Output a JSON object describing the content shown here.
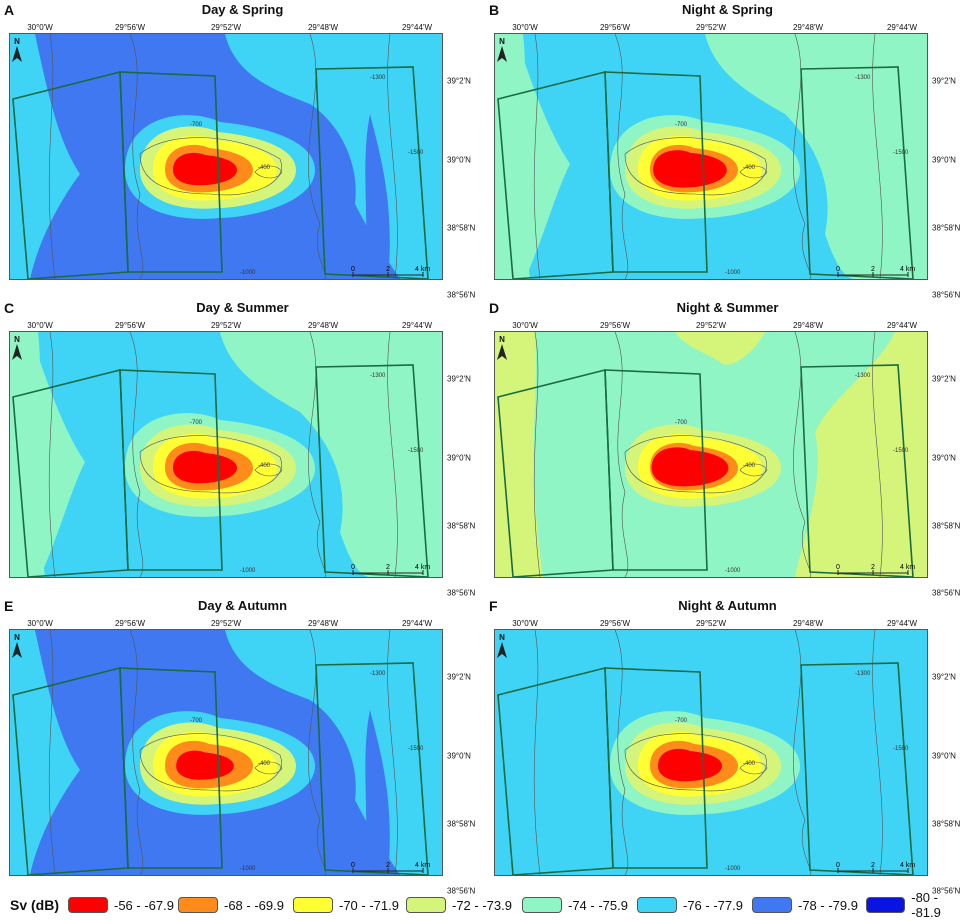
{
  "panels": [
    {
      "label": "A",
      "title": "Day & Spring",
      "scheme": "daySpring"
    },
    {
      "label": "B",
      "title": "Night & Spring",
      "scheme": "nightSpring"
    },
    {
      "label": "C",
      "title": "Day & Summer",
      "scheme": "daySummer"
    },
    {
      "label": "D",
      "title": "Night & Summer",
      "scheme": "nightSummer"
    },
    {
      "label": "E",
      "title": "Day & Autumn",
      "scheme": "dayAutumn"
    },
    {
      "label": "F",
      "title": "Night & Autumn",
      "scheme": "nightAutumn"
    }
  ],
  "lon_labels": [
    "30°0'W",
    "29°56'W",
    "29°52'W",
    "29°48'W",
    "29°44'W"
  ],
  "lat_labels": [
    "39°2'N",
    "39°0'N",
    "38°58'N",
    "38°56'N"
  ],
  "north_label": "N",
  "scale": {
    "ticks": [
      "0",
      "2",
      "4 km"
    ]
  },
  "contour_labels": [
    "-700",
    "-400",
    "-1000",
    "-1300",
    "-1500"
  ],
  "legend": {
    "title": "Sv (dB)",
    "items": [
      {
        "label": "-56 - -67.9",
        "color": "#ff0000"
      },
      {
        "label": "-68 - -69.9",
        "color": "#ff8c1a"
      },
      {
        "label": "-70 - -71.9",
        "color": "#ffff33"
      },
      {
        "label": "-72 - -73.9",
        "color": "#d4f57a"
      },
      {
        "label": "-74 - -75.9",
        "color": "#8ff5c4"
      },
      {
        "label": "-76 - -77.9",
        "color": "#3fd4f5"
      },
      {
        "label": "-78 - -79.9",
        "color": "#3f78f0"
      },
      {
        "label": "-80 - -81.9",
        "color": "#0a14e0"
      }
    ]
  },
  "colors": {
    "box": "#1a6b40",
    "contour": "#555555"
  }
}
